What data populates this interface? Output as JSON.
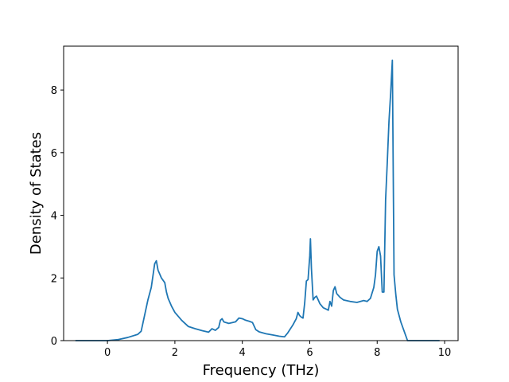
{
  "chart_data": {
    "type": "line",
    "title": "",
    "xlabel": "Frequency (THz)",
    "ylabel": "Density of States",
    "xlim": [
      -1.3,
      10.4
    ],
    "ylim": [
      0,
      9.4
    ],
    "xticks": [
      0,
      2,
      4,
      6,
      8,
      10
    ],
    "xtick_labels": [
      "0",
      "2",
      "4",
      "6",
      "8",
      "10"
    ],
    "yticks": [
      0,
      2,
      4,
      6,
      8
    ],
    "ytick_labels": [
      "0",
      "2",
      "4",
      "6",
      "8"
    ],
    "grid": false,
    "series": [
      {
        "color": "#1f77b4",
        "x": [
          -0.95,
          0.0,
          0.3,
          0.6,
          0.9,
          1.0,
          1.1,
          1.2,
          1.3,
          1.4,
          1.45,
          1.5,
          1.6,
          1.7,
          1.75,
          1.8,
          1.9,
          2.0,
          2.2,
          2.4,
          2.6,
          2.8,
          3.0,
          3.1,
          3.2,
          3.3,
          3.35,
          3.4,
          3.45,
          3.5,
          3.6,
          3.8,
          3.9,
          4.0,
          4.1,
          4.2,
          4.3,
          4.4,
          4.5,
          4.7,
          4.9,
          5.1,
          5.25,
          5.35,
          5.5,
          5.6,
          5.65,
          5.7,
          5.75,
          5.8,
          5.85,
          5.9,
          5.95,
          6.0,
          6.02,
          6.05,
          6.1,
          6.15,
          6.2,
          6.3,
          6.4,
          6.5,
          6.55,
          6.6,
          6.65,
          6.7,
          6.75,
          6.8,
          6.9,
          7.0,
          7.2,
          7.4,
          7.6,
          7.7,
          7.8,
          7.9,
          7.95,
          8.0,
          8.05,
          8.1,
          8.15,
          8.2,
          8.25,
          8.3,
          8.35,
          8.4,
          8.45,
          8.5,
          8.55,
          8.6,
          8.65,
          8.7,
          8.8,
          8.9,
          8.95,
          9.0,
          9.5,
          9.85
        ],
        "y": [
          0.0,
          0.0,
          0.03,
          0.1,
          0.2,
          0.3,
          0.8,
          1.3,
          1.7,
          2.45,
          2.55,
          2.25,
          2.0,
          1.85,
          1.55,
          1.35,
          1.1,
          0.9,
          0.65,
          0.45,
          0.38,
          0.32,
          0.27,
          0.38,
          0.33,
          0.42,
          0.65,
          0.7,
          0.6,
          0.58,
          0.55,
          0.6,
          0.72,
          0.7,
          0.65,
          0.62,
          0.58,
          0.35,
          0.28,
          0.22,
          0.18,
          0.14,
          0.12,
          0.25,
          0.5,
          0.7,
          0.9,
          0.8,
          0.75,
          0.72,
          1.2,
          1.9,
          1.95,
          2.7,
          3.25,
          2.3,
          1.3,
          1.38,
          1.42,
          1.18,
          1.05,
          1.0,
          0.97,
          1.25,
          1.1,
          1.6,
          1.72,
          1.5,
          1.38,
          1.3,
          1.25,
          1.22,
          1.28,
          1.25,
          1.35,
          1.7,
          2.1,
          2.85,
          3.0,
          2.7,
          1.55,
          1.55,
          4.5,
          5.7,
          7.0,
          7.9,
          8.95,
          2.1,
          1.5,
          1.0,
          0.8,
          0.6,
          0.3,
          0.0,
          0.0,
          0.0,
          0.0,
          0.0
        ]
      }
    ]
  }
}
